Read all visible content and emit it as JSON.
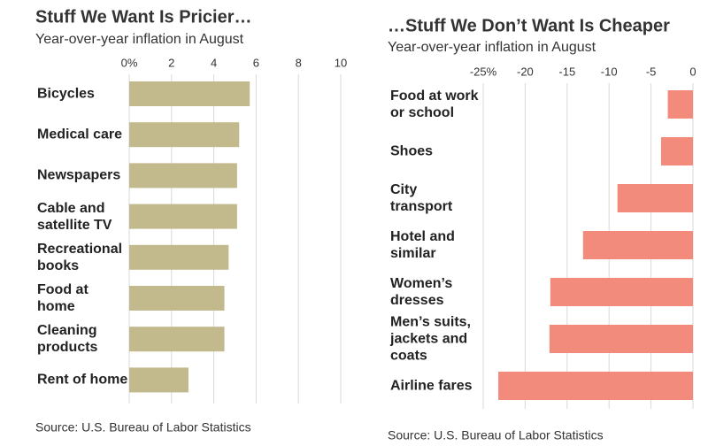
{
  "chart_data": [
    {
      "type": "bar",
      "orientation": "horizontal",
      "title": "Stuff We Want Is Pricier…",
      "subtitle": "Year-over-year inflation in August",
      "source": "Source: U.S. Bureau of Labor Statistics",
      "categories": [
        "Bicycles",
        "Medical care",
        "Newspapers",
        "Cable and satellite TV",
        "Recreational books",
        "Food at home",
        "Cleaning products",
        "Rent of home"
      ],
      "values": [
        5.7,
        5.2,
        5.1,
        5.1,
        4.7,
        4.5,
        4.5,
        2.8
      ],
      "color": "#c2b98c",
      "xlim": [
        0,
        10
      ],
      "xticks": [
        {
          "value": 0,
          "label": "0%"
        },
        2,
        4,
        6,
        8,
        10
      ],
      "grid": true
    },
    {
      "type": "bar",
      "orientation": "horizontal",
      "title": "…Stuff We Don’t Want Is Cheaper",
      "subtitle": "Year-over-year inflation in August",
      "source": "Source: U.S. Bureau of Labor Statistics",
      "categories": [
        "Food at work or school",
        "Shoes",
        "City transport",
        "Hotel and similar",
        "Women’s dresses",
        "Men’s suits, jackets and coats",
        "Airline fares"
      ],
      "values": [
        -3.0,
        -3.8,
        -9.0,
        -13.1,
        -17.0,
        -17.1,
        -23.2
      ],
      "color": "#f28b7c",
      "xlim": [
        -25,
        0
      ],
      "xticks": [
        {
          "value": -25,
          "label": "-25%"
        },
        -20,
        -15,
        -10,
        -5,
        0
      ],
      "grid": true
    }
  ]
}
